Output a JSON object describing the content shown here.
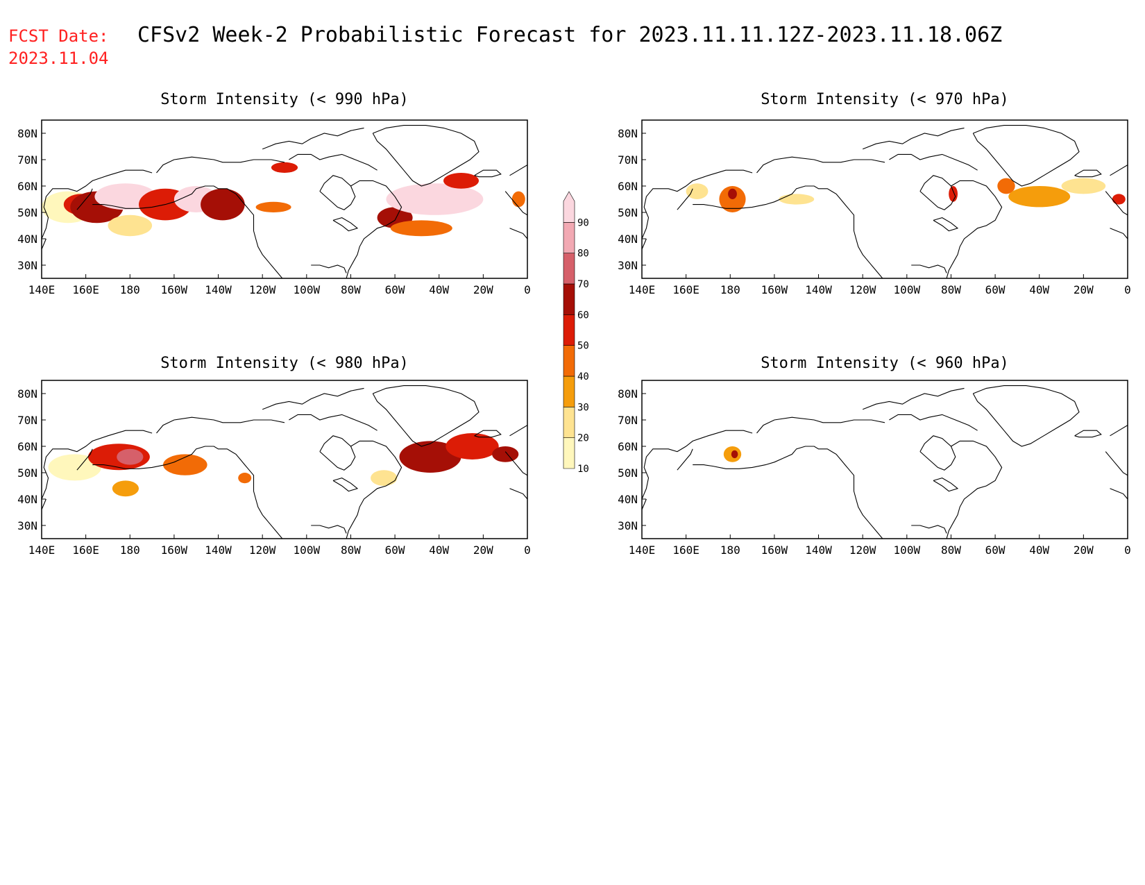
{
  "header": {
    "fcst_label": "FCST Date:",
    "fcst_date": "2023.11.04",
    "title": "CFSv2 Week-2 Probabilistic Forecast for 2023.11.11.12Z-2023.11.18.06Z"
  },
  "colors": {
    "header_red": "#ff2020",
    "land_outline": "#000000",
    "levels": [
      {
        "range": "10-20",
        "color": "#fff7bc"
      },
      {
        "range": "20-30",
        "color": "#fee391"
      },
      {
        "range": "30-40",
        "color": "#f59d0c"
      },
      {
        "range": "40-50",
        "color": "#f26b06"
      },
      {
        "range": "50-60",
        "color": "#dc1c06"
      },
      {
        "range": "60-70",
        "color": "#a50f06"
      },
      {
        "range": "70-80",
        "color": "#d6606a"
      },
      {
        "range": "80-90",
        "color": "#f2a9b3"
      },
      {
        "range": "90+",
        "color": "#fbd7df"
      }
    ]
  },
  "colorbar": {
    "ticks": [
      "10",
      "20",
      "30",
      "40",
      "50",
      "60",
      "70",
      "80",
      "90"
    ]
  },
  "axes": {
    "lon_labels": [
      "140E",
      "160E",
      "180",
      "160W",
      "140W",
      "120W",
      "100W",
      "80W",
      "60W",
      "40W",
      "20W",
      "0"
    ],
    "lat_labels": [
      "80N",
      "70N",
      "60N",
      "50N",
      "40N",
      "30N"
    ],
    "lon_range": [
      140,
      360
    ],
    "lat_range": [
      25,
      85
    ]
  },
  "panels": [
    {
      "id": "p990",
      "title": "Storm Intensity (< 990 hPa)",
      "blobs": [
        {
          "lon": 152,
          "lat": 52,
          "rx": 12,
          "ry": 6,
          "level": 0
        },
        {
          "lon": 158,
          "lat": 53,
          "rx": 8,
          "ry": 4,
          "level": 4
        },
        {
          "lon": 165,
          "lat": 52,
          "rx": 12,
          "ry": 6,
          "level": 5
        },
        {
          "lon": 178,
          "lat": 56,
          "rx": 14,
          "ry": 5,
          "level": 8
        },
        {
          "lon": 196,
          "lat": 53,
          "rx": 12,
          "ry": 6,
          "level": 4
        },
        {
          "lon": 210,
          "lat": 55,
          "rx": 10,
          "ry": 5,
          "level": 8
        },
        {
          "lon": 222,
          "lat": 53,
          "rx": 10,
          "ry": 6,
          "level": 5
        },
        {
          "lon": 180,
          "lat": 45,
          "rx": 10,
          "ry": 4,
          "level": 1
        },
        {
          "lon": 245,
          "lat": 52,
          "rx": 8,
          "ry": 2,
          "level": 3
        },
        {
          "lon": 250,
          "lat": 67,
          "rx": 6,
          "ry": 2,
          "level": 4
        },
        {
          "lon": 300,
          "lat": 48,
          "rx": 8,
          "ry": 4,
          "level": 5
        },
        {
          "lon": 312,
          "lat": 44,
          "rx": 14,
          "ry": 3,
          "level": 3
        },
        {
          "lon": 318,
          "lat": 55,
          "rx": 22,
          "ry": 6,
          "level": 8
        },
        {
          "lon": 330,
          "lat": 62,
          "rx": 8,
          "ry": 3,
          "level": 4
        },
        {
          "lon": 356,
          "lat": 55,
          "rx": 3,
          "ry": 3,
          "level": 3
        }
      ]
    },
    {
      "id": "p970",
      "title": "Storm Intensity (< 970 hPa)",
      "blobs": [
        {
          "lon": 165,
          "lat": 58,
          "rx": 5,
          "ry": 3,
          "level": 1
        },
        {
          "lon": 181,
          "lat": 55,
          "rx": 6,
          "ry": 5,
          "level": 3
        },
        {
          "lon": 181,
          "lat": 57,
          "rx": 2,
          "ry": 2,
          "level": 5
        },
        {
          "lon": 210,
          "lat": 55,
          "rx": 8,
          "ry": 2,
          "level": 1
        },
        {
          "lon": 281,
          "lat": 57,
          "rx": 2,
          "ry": 3,
          "level": 4
        },
        {
          "lon": 305,
          "lat": 60,
          "rx": 4,
          "ry": 3,
          "level": 3
        },
        {
          "lon": 320,
          "lat": 56,
          "rx": 14,
          "ry": 4,
          "level": 2
        },
        {
          "lon": 340,
          "lat": 60,
          "rx": 10,
          "ry": 3,
          "level": 1
        },
        {
          "lon": 356,
          "lat": 55,
          "rx": 3,
          "ry": 2,
          "level": 4
        }
      ]
    },
    {
      "id": "p980",
      "title": "Storm Intensity (< 980 hPa)",
      "blobs": [
        {
          "lon": 155,
          "lat": 52,
          "rx": 12,
          "ry": 5,
          "level": 0
        },
        {
          "lon": 175,
          "lat": 56,
          "rx": 14,
          "ry": 5,
          "level": 4
        },
        {
          "lon": 180,
          "lat": 56,
          "rx": 6,
          "ry": 3,
          "level": 6
        },
        {
          "lon": 205,
          "lat": 53,
          "rx": 10,
          "ry": 4,
          "level": 3
        },
        {
          "lon": 178,
          "lat": 44,
          "rx": 6,
          "ry": 3,
          "level": 2
        },
        {
          "lon": 232,
          "lat": 48,
          "rx": 3,
          "ry": 2,
          "level": 3
        },
        {
          "lon": 295,
          "lat": 48,
          "rx": 6,
          "ry": 3,
          "level": 1
        },
        {
          "lon": 316,
          "lat": 56,
          "rx": 14,
          "ry": 6,
          "level": 5
        },
        {
          "lon": 335,
          "lat": 60,
          "rx": 12,
          "ry": 5,
          "level": 4
        },
        {
          "lon": 350,
          "lat": 57,
          "rx": 6,
          "ry": 3,
          "level": 5
        }
      ]
    },
    {
      "id": "p960",
      "title": "Storm Intensity (< 960 hPa)",
      "blobs": [
        {
          "lon": 181,
          "lat": 57,
          "rx": 4,
          "ry": 3,
          "level": 2
        },
        {
          "lon": 182,
          "lat": 57,
          "rx": 1.5,
          "ry": 1.5,
          "level": 5
        }
      ]
    }
  ]
}
